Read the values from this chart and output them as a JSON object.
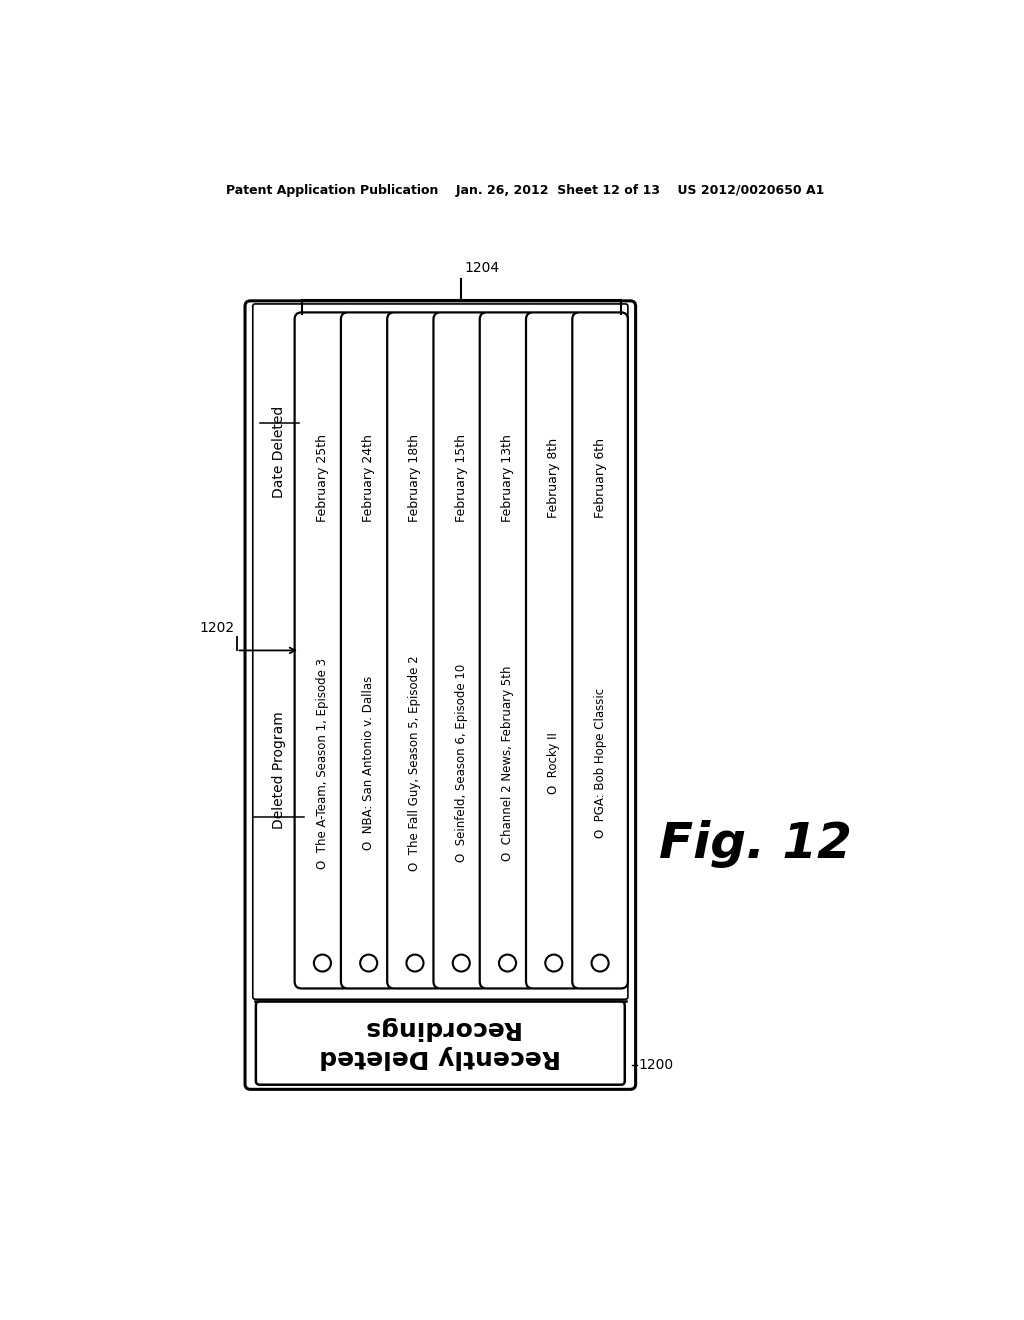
{
  "bg_color": "#ffffff",
  "header_text": "Patent Application Publication    Jan. 26, 2012  Sheet 12 of 13    US 2012/0020650 A1",
  "fig_label": "Fig. 12",
  "label_1200": "1200",
  "label_1202": "1202",
  "label_1204": "1204",
  "col_header_program": "Deleted Program",
  "col_header_date": "Date Deleted",
  "tab_line1": "Recently Deleted",
  "tab_line2": "Recordings",
  "programs": [
    "The A-Team, Season 1, Episode 3",
    "NBA: San Antonio v. Dallas",
    "The Fall Guy, Season 5, Episode 2",
    "Seinfeld, Season 6, Episode 10",
    "Channel 2 News, February 5th",
    "Rocky II",
    "PGA: Bob Hope Classic"
  ],
  "dates": [
    "February 25th",
    "February 24th",
    "February 18th",
    "February 15th",
    "February 13th",
    "February 8th",
    "February 6th"
  ]
}
